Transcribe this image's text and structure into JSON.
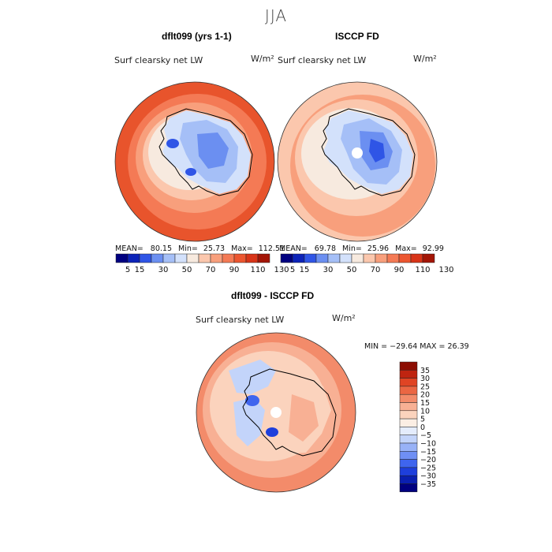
{
  "page_title": "JJA",
  "colors": {
    "land_outline": "#000000",
    "ocean_high": "#e8542c",
    "neutral": "#fdf0e6",
    "low_blue": "#1a3fd0"
  },
  "abs_palette": [
    "#000080",
    "#0c23b8",
    "#2f55e6",
    "#6b8ff1",
    "#a5bff7",
    "#d3e1fb",
    "#f7eadf",
    "#fbc7ad",
    "#f89f7c",
    "#f47a55",
    "#ec5630",
    "#d83418",
    "#a31506"
  ],
  "abs_scale_labels": [
    "5",
    "15",
    "30",
    "50",
    "70",
    "90",
    "110",
    "130"
  ],
  "diff_palette": [
    "#000080",
    "#0a1fb0",
    "#1e3fdc",
    "#3f65ee",
    "#6f8ff4",
    "#98b2f7",
    "#c3d4fa",
    "#e4ecfc",
    "#fbeee4",
    "#fbd3bd",
    "#f8b094",
    "#f38b6a",
    "#eb6643",
    "#e04424",
    "#bf2410",
    "#8c0d02"
  ],
  "diff_scale_labels": [
    "35",
    "30",
    "25",
    "20",
    "15",
    "10",
    "5",
    "0",
    "−5",
    "−10",
    "−15",
    "−20",
    "−25",
    "−30",
    "−35"
  ],
  "panels": {
    "model": {
      "title": "dflt099 (yrs 1-1)",
      "variable": "Surf clearsky net LW",
      "units": "W/m²",
      "mean_label": "MEAN=",
      "mean": "80.15",
      "min_label": "Min=",
      "min": "25.73",
      "max_label": "Max=",
      "max": "112.51"
    },
    "obs": {
      "title": "ISCCP FD",
      "variable": "Surf clearsky net LW",
      "units": "W/m²",
      "mean_label": "MEAN=",
      "mean": "69.78",
      "min_label": "Min=",
      "min": "25.96",
      "max_label": "Max=",
      "max": "92.99"
    },
    "diff": {
      "title": "dflt099 - ISCCP FD",
      "variable": "Surf clearsky net LW",
      "units": "W/m²",
      "minmax": "MIN = −29.64  MAX =  26.39"
    }
  }
}
